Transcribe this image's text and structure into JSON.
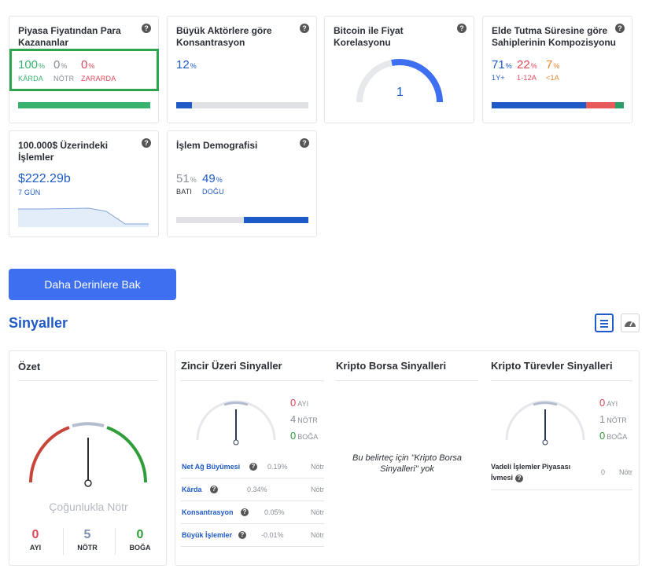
{
  "cards": {
    "profit": {
      "title": "Piyasa Fiyatından Para Kazananlar",
      "in_money": {
        "value": "100",
        "unit": "%",
        "label": "KÂRDA"
      },
      "neutral": {
        "value": "0",
        "unit": "%",
        "label": "NÖTR"
      },
      "out_money": {
        "value": "0",
        "unit": "%",
        "label": "ZARARDA"
      },
      "bar_in_money_fraction": 1.0
    },
    "concentration": {
      "title": "Büyük Aktörlere göre Konsantrasyon",
      "value": "12",
      "unit": "%",
      "bar_fraction": 0.12
    },
    "correlation": {
      "title": "Bitcoin ile Fiyat Korelasyonu",
      "value": "1",
      "gauge_fraction": 1.0
    },
    "holding": {
      "title": "Elde Tutma Süresine göre Sahiplerinin Kompozisyonu",
      "items": [
        {
          "value": "71",
          "unit": "%",
          "label": "1Y+"
        },
        {
          "value": "22",
          "unit": "%",
          "label": "1-12A"
        },
        {
          "value": "7",
          "unit": "%",
          "label": "<1A"
        }
      ]
    },
    "large_tx": {
      "title": "100.000$ Üzerindeki İşlemler",
      "value": "$222.29b",
      "period": "7 GÜN"
    },
    "demographics": {
      "title": "İşlem Demografisi",
      "west": {
        "value": "51",
        "unit": "%",
        "label": "BATI"
      },
      "east": {
        "value": "49",
        "unit": "%",
        "label": "DOĞU"
      }
    }
  },
  "deeper_button": "Daha Derinlere Bak",
  "signals": {
    "title": "Sinyaller",
    "summary": {
      "title": "Özet",
      "verdict": "Çoğunlukla Nötr",
      "bearish": {
        "value": "0",
        "label": "AYI"
      },
      "neutral": {
        "value": "5",
        "label": "NÖTR"
      },
      "bullish": {
        "value": "0",
        "label": "BOĞA"
      }
    },
    "onchain": {
      "title": "Zincir Üzeri Sinyaller",
      "bearish": {
        "value": "0",
        "label": "AYI"
      },
      "neutral": {
        "value": "4",
        "label": "NÖTR"
      },
      "bullish": {
        "value": "0",
        "label": "BOĞA"
      },
      "rows": [
        {
          "name": "Net Ağ Büyümesi",
          "value": "0.19%",
          "status": "Nötr"
        },
        {
          "name": "Kârda",
          "value": "0.34%",
          "status": "Nötr"
        },
        {
          "name": "Konsantrasyon",
          "value": "0.05%",
          "status": "Nötr"
        },
        {
          "name": "Büyük İşlemler",
          "value": "-0.01%",
          "status": "Nötr"
        }
      ]
    },
    "exchange": {
      "title": "Kripto Borsa Sinyalleri",
      "empty_text": "Bu belirteç için \"Kripto Borsa Sinyalleri\" yok"
    },
    "derivatives": {
      "title": "Kripto Türevler Sinyalleri",
      "bearish": {
        "value": "0",
        "label": "AYI"
      },
      "neutral": {
        "value": "1",
        "label": "NÖTR"
      },
      "bullish": {
        "value": "0",
        "label": "BOĞA"
      },
      "row": {
        "name": "Vadeli İşlemler Piyasası İvmesi",
        "value": "0",
        "status": "Nötr"
      }
    }
  },
  "colors": {
    "accent": "#3d6ff0",
    "title_blue": "#1e5bc6",
    "green": "#38b26f",
    "red": "#e0485a",
    "highlight_box": "#2ea44f"
  },
  "icons": [
    "help-icon",
    "list-view-icon",
    "gauge-view-icon"
  ]
}
